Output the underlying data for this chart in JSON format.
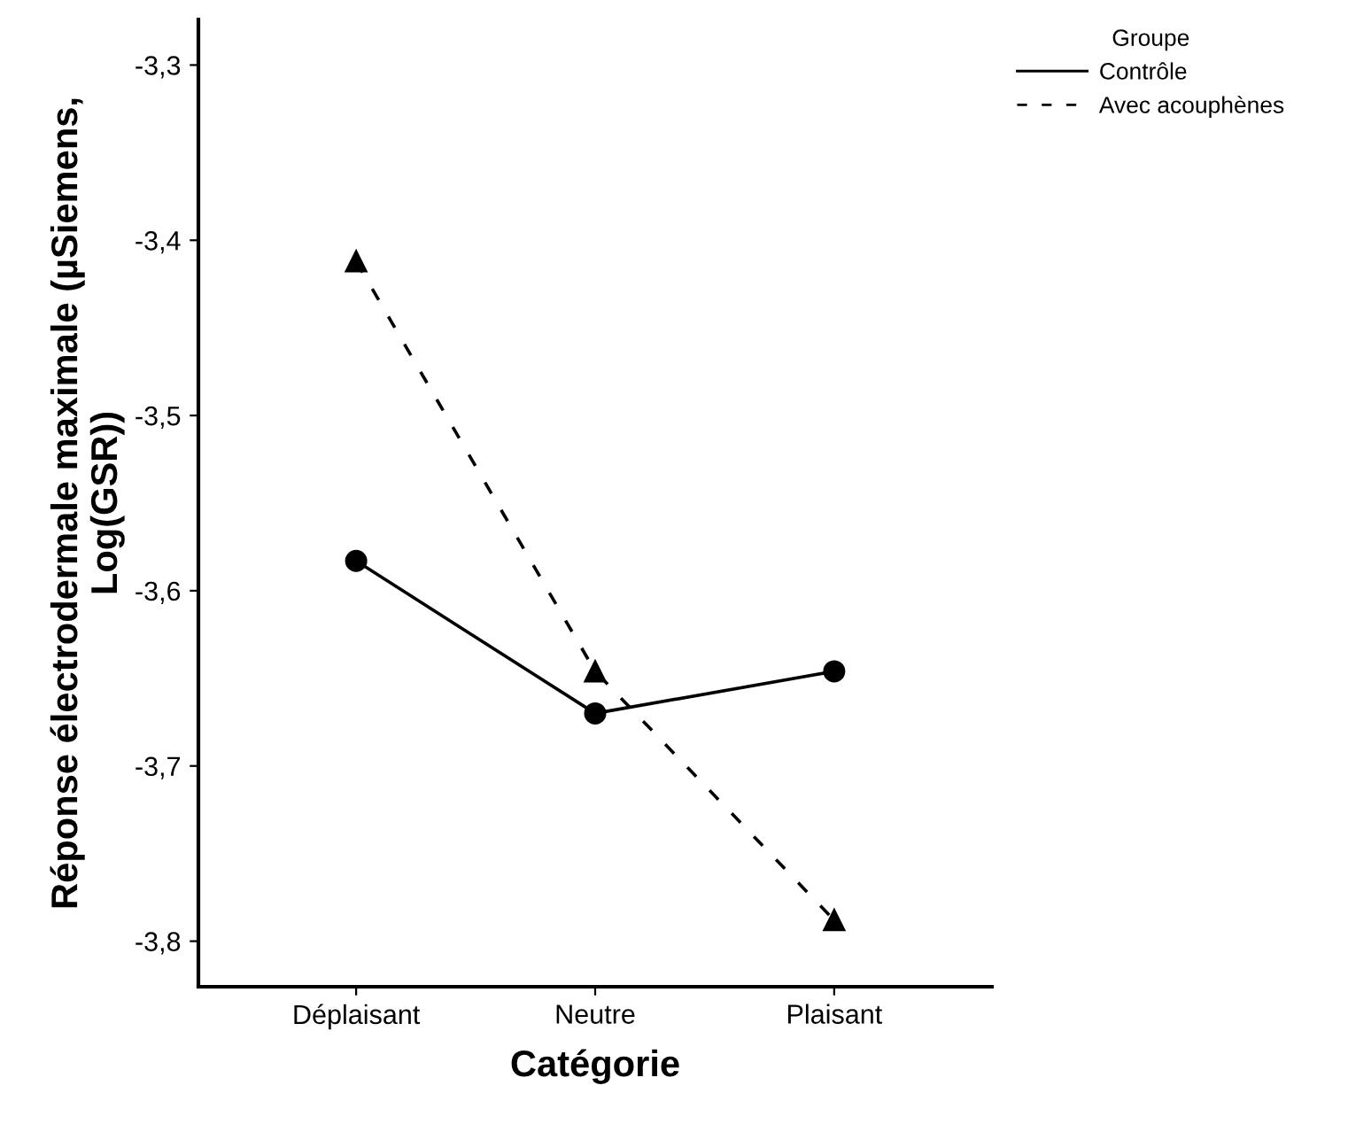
{
  "chart_data": {
    "type": "line",
    "xlabel": "Catégorie",
    "ylabel": "Réponse électrodermale maximale (µSiemens,\nLog(GSR))",
    "legend_title": "Groupe",
    "categories": [
      "Déplaisant",
      "Neutre",
      "Plaisant"
    ],
    "series": [
      {
        "name": "Contrôle",
        "color": "#000000",
        "marker": "circle",
        "line_style": "solid",
        "values": [
          -3.583,
          -3.67,
          -3.646
        ]
      },
      {
        "name": "Avec acouphènes",
        "color": "#000000",
        "marker": "triangle",
        "line_style": "dashed",
        "values": [
          -3.412,
          -3.646,
          -3.788
        ]
      }
    ],
    "ylim": [
      -3.826,
      -3.274
    ],
    "yticks": [
      {
        "value": -3.3,
        "label": "-3,3"
      },
      {
        "value": -3.4,
        "label": "-3,4"
      },
      {
        "value": -3.5,
        "label": "-3,5"
      },
      {
        "value": -3.6,
        "label": "-3,6"
      },
      {
        "value": -3.7,
        "label": "-3,7"
      },
      {
        "value": -3.8,
        "label": "-3,8"
      }
    ],
    "grid": false,
    "legend": "top right"
  }
}
